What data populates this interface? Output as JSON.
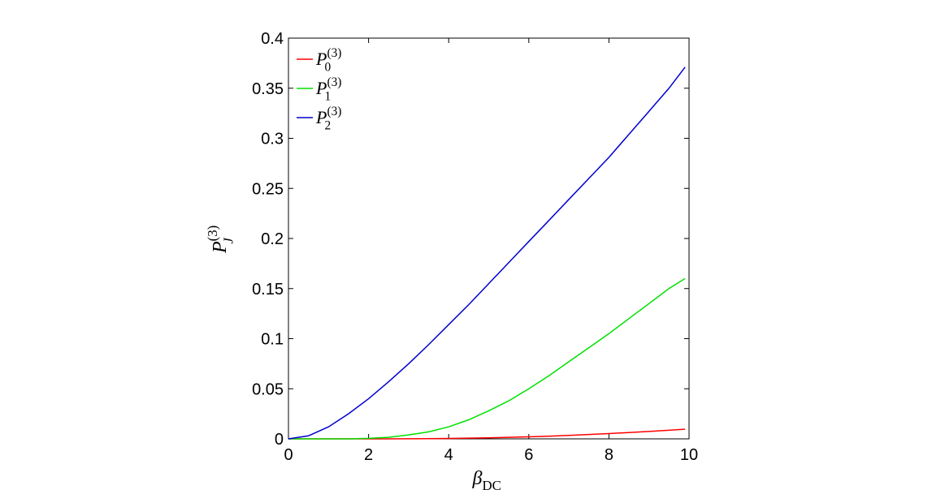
{
  "chart_data": {
    "type": "line",
    "x_label": "βDC",
    "y_label": "PJ(3)",
    "x": [
      0,
      0.5,
      1,
      1.5,
      2,
      2.5,
      3,
      3.5,
      4,
      4.5,
      5,
      5.5,
      6,
      6.5,
      7,
      7.5,
      8,
      8.5,
      9,
      9.5,
      9.9
    ],
    "series": [
      {
        "name": "P0(3)",
        "color": "#ff0000",
        "values": [
          0,
          0,
          0,
          0,
          0,
          0,
          0.0001,
          0.0002,
          0.0004,
          0.0007,
          0.001,
          0.0015,
          0.002,
          0.0027,
          0.0035,
          0.0044,
          0.0053,
          0.0063,
          0.0074,
          0.0086,
          0.0096
        ]
      },
      {
        "name": "P1(3)",
        "color": "#00e000",
        "values": [
          0,
          0,
          0,
          0,
          0.0005,
          0.0015,
          0.004,
          0.007,
          0.012,
          0.019,
          0.028,
          0.038,
          0.05,
          0.063,
          0.077,
          0.091,
          0.105,
          0.12,
          0.135,
          0.15,
          0.16
        ]
      },
      {
        "name": "P2(3)",
        "color": "#0000d0",
        "values": [
          0,
          0.003,
          0.012,
          0.025,
          0.04,
          0.057,
          0.075,
          0.094,
          0.114,
          0.134,
          0.155,
          0.176,
          0.197,
          0.218,
          0.239,
          0.26,
          0.281,
          0.304,
          0.327,
          0.35,
          0.371
        ]
      }
    ],
    "xlim": [
      0,
      10
    ],
    "xticks": [
      0,
      2,
      4,
      6,
      8,
      10
    ],
    "ylim": [
      0,
      0.4
    ],
    "yticks": [
      0,
      0.05,
      0.1,
      0.15,
      0.2,
      0.25,
      0.3,
      0.35,
      0.4
    ],
    "legend": "upper-left"
  }
}
